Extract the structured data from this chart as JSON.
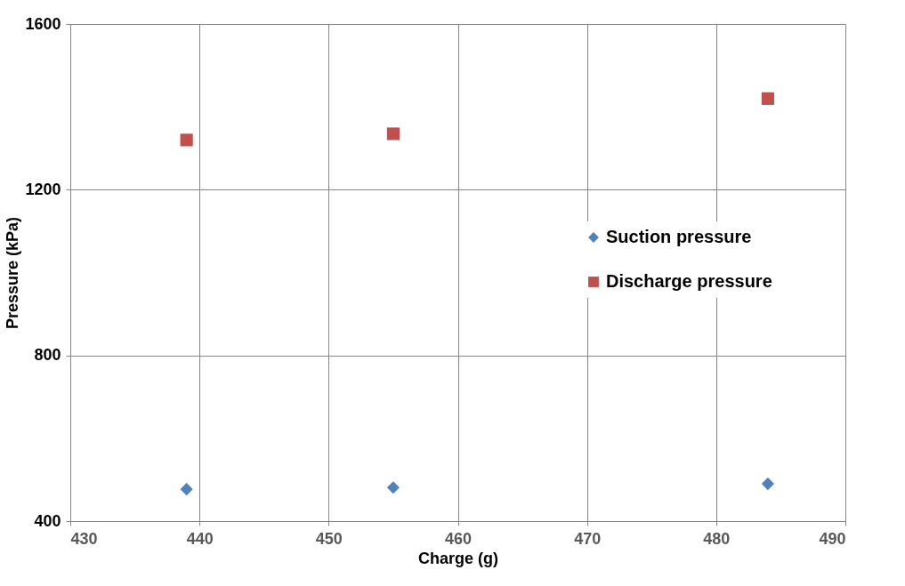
{
  "chart_data": {
    "type": "scatter",
    "xlabel": "Charge (g)",
    "ylabel": "Pressure (kPa)",
    "xlim": [
      430,
      490
    ],
    "xticks": [
      430,
      440,
      450,
      460,
      470,
      480,
      490
    ],
    "ylim": [
      400,
      1600
    ],
    "yticks": [
      400,
      800,
      1200,
      1600
    ],
    "grid": true,
    "legend": "right",
    "series": [
      {
        "name": "Suction pressure",
        "color": "#4f81bd",
        "marker": "diamond",
        "x": [
          439,
          455,
          484
        ],
        "values": [
          477,
          481,
          490
        ]
      },
      {
        "name": "Discharge pressure",
        "color": "#c0504d",
        "marker": "square",
        "x": [
          439,
          455,
          484
        ],
        "values": [
          1320,
          1335,
          1420
        ]
      }
    ]
  }
}
